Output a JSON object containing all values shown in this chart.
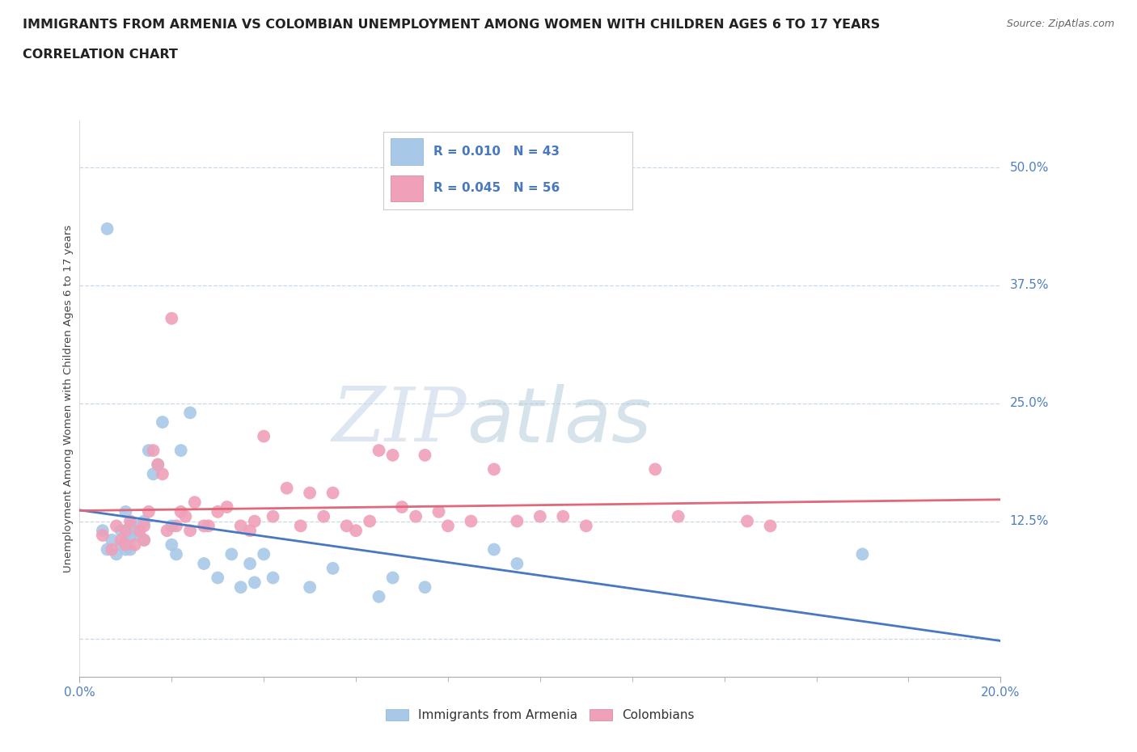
{
  "title": "IMMIGRANTS FROM ARMENIA VS COLOMBIAN UNEMPLOYMENT AMONG WOMEN WITH CHILDREN AGES 6 TO 17 YEARS",
  "subtitle": "CORRELATION CHART",
  "source": "Source: ZipAtlas.com",
  "ylabel": "Unemployment Among Women with Children Ages 6 to 17 years",
  "xlim": [
    0.0,
    0.2
  ],
  "ylim": [
    -0.04,
    0.55
  ],
  "yticks": [
    0.0,
    0.125,
    0.25,
    0.375,
    0.5
  ],
  "ytick_labels": [
    "",
    "12.5%",
    "25.0%",
    "37.5%",
    "50.0%"
  ],
  "xtick_labels": [
    "0.0%",
    "20.0%"
  ],
  "background_color": "#ffffff",
  "grid_color": "#c8d8e8",
  "watermark_zip": "ZIP",
  "watermark_atlas": "atlas",
  "series1_color": "#a8c8e8",
  "series2_color": "#f0a0b8",
  "series1_label": "Immigrants from Armenia",
  "series2_label": "Colombians",
  "series1_line_color": "#4878c0",
  "series2_line_color": "#e06878",
  "legend_text1": "R = 0.010   N = 43",
  "legend_text2": "R = 0.045   N = 56",
  "armenia_x": [
    0.006,
    0.005,
    0.006,
    0.007,
    0.008,
    0.009,
    0.009,
    0.01,
    0.01,
    0.01,
    0.011,
    0.011,
    0.011,
    0.012,
    0.013,
    0.013,
    0.014,
    0.014,
    0.015,
    0.016,
    0.017,
    0.018,
    0.02,
    0.02,
    0.021,
    0.022,
    0.024,
    0.027,
    0.03,
    0.033,
    0.035,
    0.037,
    0.038,
    0.04,
    0.042,
    0.05,
    0.055,
    0.065,
    0.068,
    0.075,
    0.09,
    0.095,
    0.17
  ],
  "armenia_y": [
    0.435,
    0.115,
    0.095,
    0.105,
    0.09,
    0.115,
    0.1,
    0.135,
    0.11,
    0.095,
    0.12,
    0.108,
    0.095,
    0.115,
    0.11,
    0.12,
    0.125,
    0.105,
    0.2,
    0.175,
    0.185,
    0.23,
    0.12,
    0.1,
    0.09,
    0.2,
    0.24,
    0.08,
    0.065,
    0.09,
    0.055,
    0.08,
    0.06,
    0.09,
    0.065,
    0.055,
    0.075,
    0.045,
    0.065,
    0.055,
    0.095,
    0.08,
    0.09
  ],
  "colombia_x": [
    0.005,
    0.007,
    0.008,
    0.009,
    0.01,
    0.01,
    0.011,
    0.012,
    0.013,
    0.014,
    0.014,
    0.015,
    0.016,
    0.017,
    0.018,
    0.019,
    0.02,
    0.021,
    0.022,
    0.023,
    0.024,
    0.025,
    0.027,
    0.028,
    0.03,
    0.032,
    0.035,
    0.037,
    0.038,
    0.04,
    0.042,
    0.045,
    0.048,
    0.05,
    0.053,
    0.055,
    0.058,
    0.06,
    0.063,
    0.065,
    0.068,
    0.07,
    0.073,
    0.075,
    0.078,
    0.08,
    0.085,
    0.09,
    0.095,
    0.1,
    0.105,
    0.11,
    0.125,
    0.13,
    0.145,
    0.15
  ],
  "colombia_y": [
    0.11,
    0.095,
    0.12,
    0.105,
    0.1,
    0.115,
    0.125,
    0.1,
    0.115,
    0.12,
    0.105,
    0.135,
    0.2,
    0.185,
    0.175,
    0.115,
    0.34,
    0.12,
    0.135,
    0.13,
    0.115,
    0.145,
    0.12,
    0.12,
    0.135,
    0.14,
    0.12,
    0.115,
    0.125,
    0.215,
    0.13,
    0.16,
    0.12,
    0.155,
    0.13,
    0.155,
    0.12,
    0.115,
    0.125,
    0.2,
    0.195,
    0.14,
    0.13,
    0.195,
    0.135,
    0.12,
    0.125,
    0.18,
    0.125,
    0.13,
    0.13,
    0.12,
    0.18,
    0.13,
    0.125,
    0.12
  ]
}
